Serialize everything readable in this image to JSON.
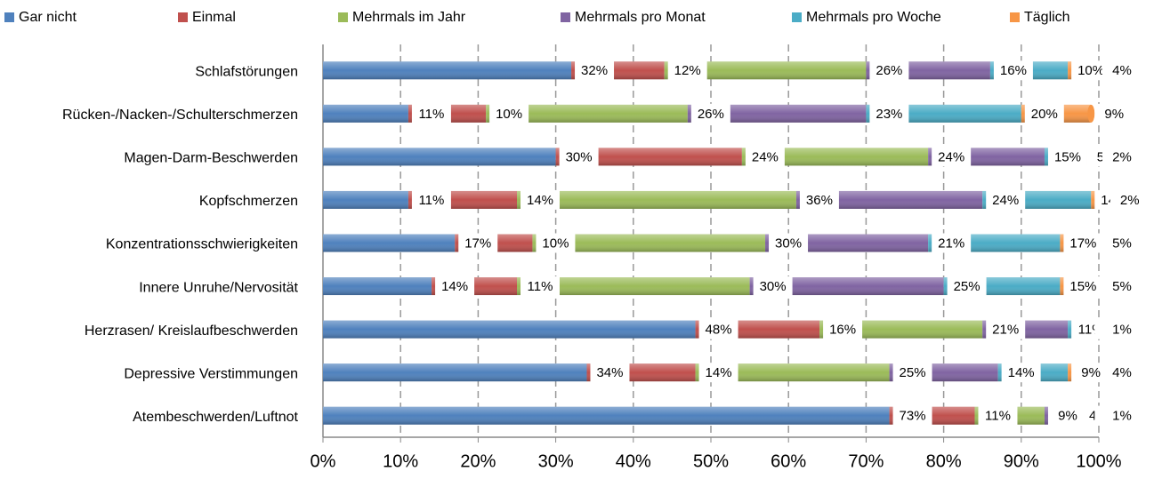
{
  "chart_data": {
    "type": "stacked_bar_horizontal",
    "categories": [
      "Schlafstörungen",
      "Rücken-/Nacken-/Schulterschmerzen",
      "Magen-Darm-Beschwerden",
      "Kopfschmerzen",
      "Konzentrationsschwierigkeiten",
      "Innere Unruhe/Nervosität",
      "Herzrasen/ Kreislaufbeschwerden",
      "Depressive Verstimmungen",
      "Atembeschwerden/Luftnot"
    ],
    "series": [
      {
        "name": "Gar nicht",
        "color": "#4F81BD",
        "values": [
          32,
          11,
          30,
          11,
          17,
          14,
          48,
          34,
          73
        ],
        "value_labels": [
          "32%",
          "11%",
          "30%",
          "11%",
          "17%",
          "14%",
          "48%",
          "34%",
          "73%"
        ]
      },
      {
        "name": "Einmal",
        "color": "#C0504D",
        "values": [
          12,
          10,
          24,
          14,
          10,
          11,
          16,
          14,
          11
        ],
        "value_labels": [
          "12%",
          "10%",
          "24%",
          "14%",
          "10%",
          "11%",
          "16%",
          "14%",
          "11%"
        ]
      },
      {
        "name": "Mehrmals im Jahr",
        "color": "#9BBB59",
        "values": [
          26,
          26,
          24,
          36,
          30,
          30,
          21,
          25,
          9
        ],
        "value_labels": [
          "26%",
          "26%",
          "24%",
          "36%",
          "30%",
          "30%",
          "21%",
          "25%",
          "9%"
        ]
      },
      {
        "name": "Mehrmals pro Monat",
        "color": "#8064A2",
        "values": [
          16,
          23,
          15,
          24,
          21,
          25,
          11,
          14,
          4
        ],
        "value_labels": [
          "16%",
          "23%",
          "15%",
          "24%",
          "21%",
          "25%",
          "11%",
          "14%",
          "4%"
        ]
      },
      {
        "name": "Mehrmals pro Woche",
        "color": "#4BACC6",
        "values": [
          10,
          20,
          5,
          14,
          17,
          15,
          3,
          9,
          2
        ],
        "value_labels": [
          "10%",
          "20%",
          "5%",
          "14%",
          "17%",
          "15%",
          "3%",
          "9%",
          "2%"
        ]
      },
      {
        "name": "Täglich",
        "color": "#F79646",
        "values": [
          4,
          9,
          2,
          2,
          5,
          5,
          1,
          4,
          1
        ],
        "value_labels": [
          "4%",
          "9%",
          "2%",
          "2%",
          "5%",
          "5%",
          "1%",
          "4%",
          "1%"
        ]
      }
    ],
    "xlim": [
      0,
      100
    ],
    "xticks": [
      {
        "value": 0,
        "label": "0%"
      },
      {
        "value": 10,
        "label": "10%"
      },
      {
        "value": 20,
        "label": "20%"
      },
      {
        "value": 30,
        "label": "30%"
      },
      {
        "value": 40,
        "label": "40%"
      },
      {
        "value": 50,
        "label": "50%"
      },
      {
        "value": 60,
        "label": "60%"
      },
      {
        "value": 70,
        "label": "70%"
      },
      {
        "value": 80,
        "label": "80%"
      },
      {
        "value": 90,
        "label": "90%"
      },
      {
        "value": 100,
        "label": "100%"
      }
    ],
    "grid": true,
    "legend": "top"
  }
}
